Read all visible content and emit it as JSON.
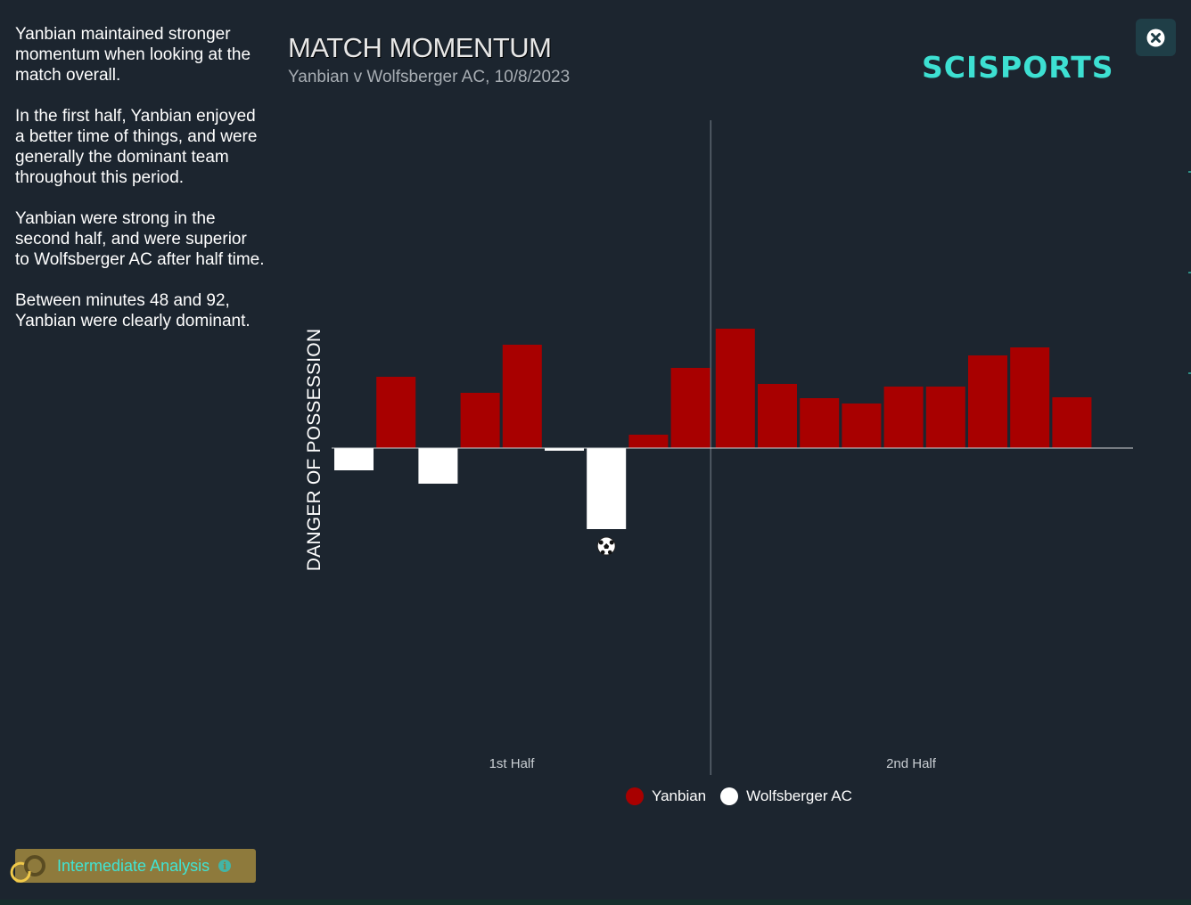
{
  "summary": {
    "paragraphs": [
      "Yanbian maintained stronger momentum when looking at the match overall.",
      "In the first half, Yanbian enjoyed a better time of things, and were generally the dominant team throughout this period.",
      "Yanbian were strong in the second half, and were superior to Wolfsberger AC after half time.",
      "Between minutes 48 and 92, Yanbian were clearly dominant."
    ]
  },
  "header": {
    "title": "MATCH MOMENTUM",
    "subtitle": "Yanbian v Wolfsberger AC, 10/8/2023",
    "brand": "SCISPORTS",
    "brand_color": "#3de0d2"
  },
  "close_button": {
    "icon": "close-circle-icon"
  },
  "badge": {
    "label": "Intermediate Analysis",
    "icon": "info-icon",
    "color": "#8e7a3c",
    "text_color": "#40e4d4"
  },
  "chart_data": {
    "type": "bar",
    "ylabel": "DANGER OF POSSESSION",
    "xlabel_halves": [
      "1st Half",
      "2nd Half"
    ],
    "legend": [
      {
        "name": "Yanbian",
        "color": "#a80000"
      },
      {
        "name": "Wolfsberger AC",
        "color": "#ffffff"
      }
    ],
    "series": [
      {
        "name": "Yanbian",
        "color": "#a80000",
        "values": [
          0,
          80,
          0,
          62,
          116,
          0,
          0,
          15,
          90,
          134,
          72,
          56,
          50,
          69,
          69,
          104,
          113,
          57
        ]
      },
      {
        "name": "Wolfsberger AC",
        "color": "#ffffff",
        "values": [
          25,
          0,
          40,
          0,
          0,
          3,
          91,
          0,
          0,
          0,
          0,
          0,
          0,
          0,
          0,
          0,
          0,
          0
        ]
      }
    ],
    "half_split_after_bar": 9,
    "events": [
      {
        "type": "goal",
        "team": "Wolfsberger AC",
        "bar": 7,
        "icon": "soccer-ball-icon"
      }
    ],
    "ylim": [
      -150,
      150
    ]
  }
}
